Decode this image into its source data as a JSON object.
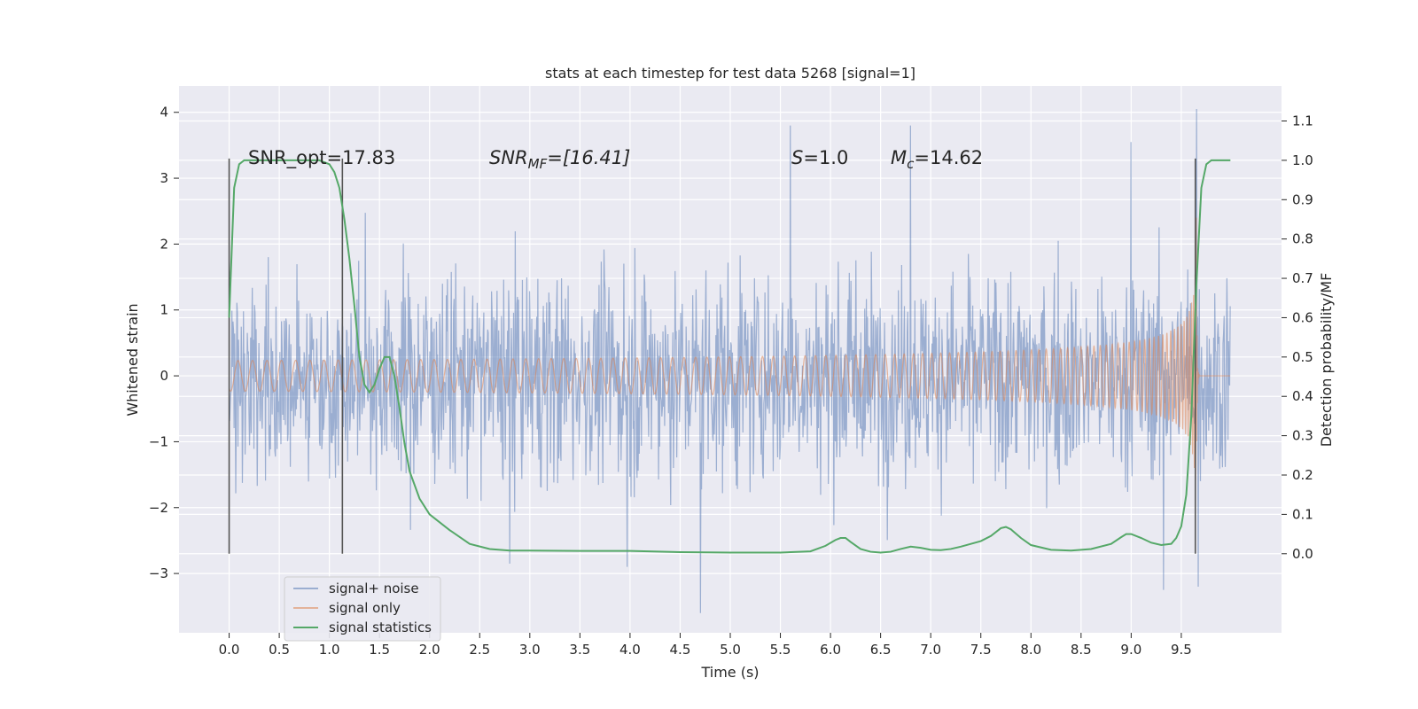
{
  "chart_data": {
    "type": "line",
    "title": "stats at each timestep for test data 5268 [signal=1]",
    "xlabel": "Time (s)",
    "ylabel": "Whitened strain",
    "y2label": "Detection probability/MF",
    "xlim": [
      -0.5,
      10.5
    ],
    "ylim": [
      -3.9,
      4.4
    ],
    "y2lim": [
      -0.201,
      1.189
    ],
    "xticks": [
      0.0,
      0.5,
      1.0,
      1.5,
      2.0,
      2.5,
      3.0,
      3.5,
      4.0,
      4.5,
      5.0,
      5.5,
      6.0,
      6.5,
      7.0,
      7.5,
      8.0,
      8.5,
      9.0,
      9.5
    ],
    "xtick_labels": [
      "0.0",
      "0.5",
      "1.0",
      "1.5",
      "2.0",
      "2.5",
      "3.0",
      "3.5",
      "4.0",
      "4.5",
      "5.0",
      "5.5",
      "6.0",
      "6.5",
      "7.0",
      "7.5",
      "8.0",
      "8.5",
      "9.0",
      "9.5"
    ],
    "yticks": [
      -3,
      -2,
      -1,
      0,
      1,
      2,
      3,
      4
    ],
    "ytick_labels": [
      "−3",
      "−2",
      "−1",
      "0",
      "1",
      "2",
      "3",
      "4"
    ],
    "y2ticks": [
      0.0,
      0.1,
      0.2,
      0.3,
      0.4,
      0.5,
      0.6,
      0.7,
      0.8,
      0.9,
      1.0,
      1.1
    ],
    "y2tick_labels": [
      "0.0",
      "0.1",
      "0.2",
      "0.3",
      "0.4",
      "0.5",
      "0.6",
      "0.7",
      "0.8",
      "0.9",
      "1.0",
      "1.1"
    ],
    "grid": true,
    "legend": {
      "placement": "lower-left",
      "entries": [
        "signal+ noise",
        "signal only",
        "signal statistics"
      ]
    },
    "annotations": {
      "snr_opt": "SNR_opt=17.83",
      "snr_mf_label": "SNR",
      "snr_mf_sub": "MF",
      "snr_mf_value": "=[16.41]",
      "s_label": "S",
      "s_value": "=1.0",
      "mc_label": "M",
      "mc_sub": "c",
      "mc_value": "=14.62"
    },
    "vertical_markers": [
      0.0,
      1.13,
      9.64
    ],
    "series": [
      {
        "name": "signal+ noise",
        "kind": "noise",
        "x_range": [
          0.0,
          9.99
        ],
        "core_band": [
          -1.0,
          1.0
        ],
        "color": "#4c72b0"
      },
      {
        "name": "signal only",
        "kind": "chirp",
        "x_range": [
          0.0,
          9.99
        ],
        "merger_time": 9.65,
        "peak_amplitude": 2.4,
        "color": "#dd8452"
      },
      {
        "name": "signal statistics",
        "axis": "y2",
        "color": "#55a868",
        "x": [
          0.0,
          0.05,
          0.1,
          0.15,
          0.2,
          0.3,
          0.5,
          0.7,
          0.9,
          1.0,
          1.05,
          1.1,
          1.15,
          1.2,
          1.25,
          1.3,
          1.35,
          1.4,
          1.45,
          1.5,
          1.55,
          1.6,
          1.65,
          1.7,
          1.75,
          1.8,
          1.9,
          2.0,
          2.2,
          2.4,
          2.6,
          2.8,
          3.0,
          3.5,
          4.0,
          4.5,
          5.0,
          5.5,
          5.8,
          5.95,
          6.05,
          6.1,
          6.15,
          6.2,
          6.3,
          6.4,
          6.5,
          6.6,
          6.7,
          6.8,
          6.9,
          7.0,
          7.1,
          7.2,
          7.3,
          7.5,
          7.6,
          7.7,
          7.75,
          7.8,
          7.9,
          8.0,
          8.2,
          8.4,
          8.6,
          8.8,
          8.9,
          8.95,
          9.0,
          9.1,
          9.2,
          9.3,
          9.4,
          9.45,
          9.5,
          9.55,
          9.6,
          9.65,
          9.7,
          9.75,
          9.8,
          9.9,
          9.99
        ],
        "y": [
          0.6,
          0.93,
          0.99,
          1.0,
          1.0,
          1.0,
          1.0,
          1.0,
          1.0,
          0.99,
          0.97,
          0.93,
          0.85,
          0.75,
          0.63,
          0.5,
          0.43,
          0.41,
          0.43,
          0.47,
          0.5,
          0.5,
          0.45,
          0.37,
          0.28,
          0.21,
          0.14,
          0.1,
          0.06,
          0.025,
          0.012,
          0.008,
          0.008,
          0.007,
          0.007,
          0.004,
          0.003,
          0.003,
          0.006,
          0.02,
          0.035,
          0.04,
          0.04,
          0.03,
          0.012,
          0.005,
          0.003,
          0.005,
          0.012,
          0.018,
          0.015,
          0.01,
          0.009,
          0.012,
          0.018,
          0.032,
          0.045,
          0.065,
          0.068,
          0.062,
          0.04,
          0.022,
          0.01,
          0.008,
          0.012,
          0.025,
          0.042,
          0.05,
          0.05,
          0.04,
          0.028,
          0.022,
          0.025,
          0.04,
          0.07,
          0.15,
          0.35,
          0.68,
          0.93,
          0.99,
          1.0,
          1.0,
          1.0
        ]
      }
    ]
  }
}
